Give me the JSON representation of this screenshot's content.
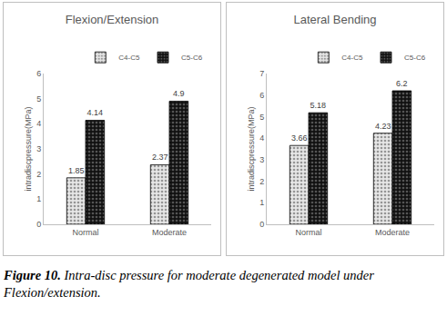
{
  "chart_data": [
    {
      "type": "bar",
      "title": "Flexion/Extension",
      "y_label": "intradiscpressure(MPa)",
      "categories": [
        "Normal",
        "Moderate"
      ],
      "series": [
        {
          "name": "C4-C5",
          "color": "#e6e6e6",
          "values": [
            1.85,
            2.37
          ]
        },
        {
          "name": "C5-C6",
          "color": "#111111",
          "values": [
            4.14,
            4.9
          ]
        }
      ],
      "ylim": [
        0,
        6
      ],
      "yticks": [
        0,
        1,
        2,
        3,
        4,
        5,
        6
      ],
      "grid": false,
      "legend": "top right",
      "data_labels": true
    },
    {
      "type": "bar",
      "title": "Lateral Bending",
      "y_label": "intradiscpressure(MPa)",
      "categories": [
        "Normal",
        "Moderate"
      ],
      "series": [
        {
          "name": "C4-C5",
          "color": "#e6e6e6",
          "values": [
            3.66,
            4.23
          ]
        },
        {
          "name": "C5-C6",
          "color": "#111111",
          "values": [
            5.18,
            6.2
          ]
        }
      ],
      "ylim": [
        0,
        7
      ],
      "yticks": [
        0,
        1,
        2,
        3,
        4,
        5,
        6,
        7
      ],
      "grid": false,
      "legend": "top right",
      "data_labels": true
    }
  ],
  "caption": {
    "label": "Figure 10.",
    "text": "Intra-disc pressure for moderate degenerated model under Flexion/extension."
  }
}
